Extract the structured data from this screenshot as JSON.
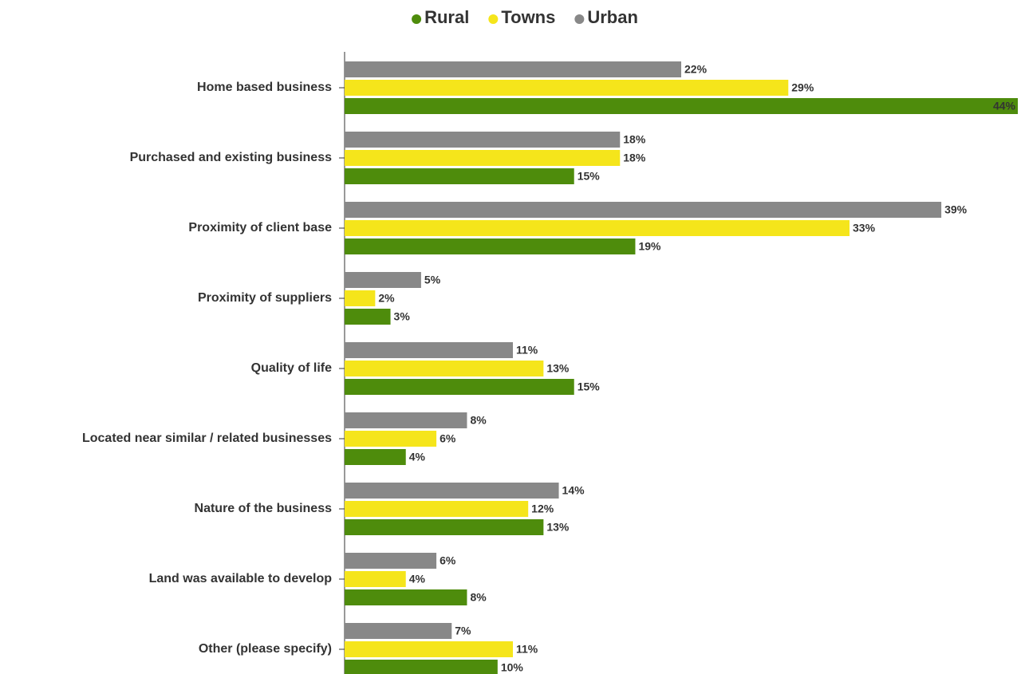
{
  "chart_data": {
    "type": "hbar",
    "categories": [
      "Home based business",
      "Purchased and existing business",
      "Proximity of client base",
      "Proximity of suppliers",
      "Quality of life",
      "Located near similar / related businesses",
      "Nature of the business",
      "Land was available to develop",
      "Other (please specify)"
    ],
    "series": [
      {
        "name": "Rural",
        "color": "#4e8c0c",
        "values": [
          44,
          15,
          19,
          3,
          15,
          4,
          13,
          8,
          10
        ],
        "value_labels": [
          "44%",
          "15%",
          "19%",
          "3%",
          "15%",
          "4%",
          "13%",
          "8%",
          "10%"
        ]
      },
      {
        "name": "Towns",
        "color": "#f5e51b",
        "values": [
          29,
          18,
          33,
          2,
          13,
          6,
          12,
          4,
          11
        ],
        "value_labels": [
          "29%",
          "18%",
          "33%",
          "2%",
          "13%",
          "6%",
          "12%",
          "4%",
          "11%"
        ]
      },
      {
        "name": "Urban",
        "color": "#888888",
        "values": [
          22,
          18,
          39,
          5,
          11,
          8,
          14,
          6,
          7
        ],
        "value_labels": [
          "22%",
          "18%",
          "39%",
          "5%",
          "11%",
          "8%",
          "14%",
          "6%",
          "7%"
        ]
      }
    ],
    "xlim": [
      0,
      44
    ]
  }
}
